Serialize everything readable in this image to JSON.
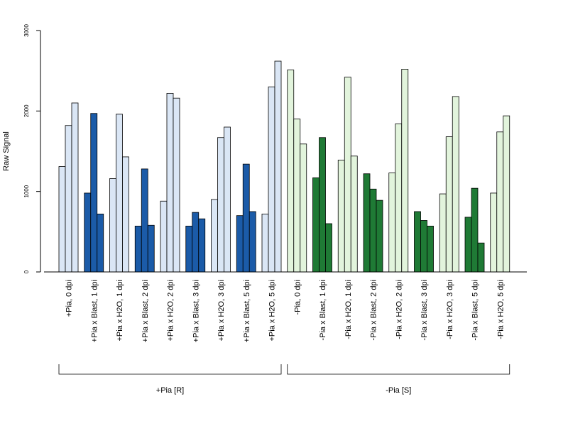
{
  "colors": {
    "pia_r_light": "#dae6f5",
    "pia_r_dark": "#1b5ba8",
    "pia_s_light": "#e2f4dc",
    "pia_s_dark": "#1f7a35",
    "bar_border": "#000000",
    "axis": "#000000"
  },
  "chart_data": {
    "type": "bar",
    "title": "",
    "xlabel": "",
    "ylabel": "Raw Signal",
    "ylim": [
      0,
      3000
    ],
    "yticks": [
      0,
      1000,
      2000,
      3000
    ],
    "bars_per_group": 3,
    "categories": [
      "+Pia, 0 dpi",
      "+Pia x Blast, 1 dpi",
      "+Pia x H2O, 1 dpi",
      "+Pia x Blast, 2 dpi",
      "+Pia x H2O, 2 dpi",
      "+Pia x Blast, 3 dpi",
      "+Pia x H2O, 3 dpi",
      "+Pia x Blast, 5 dpi",
      "+Pia x H2O, 5 dpi",
      "-Pia, 0 dpi",
      "-Pia x Blast, 1 dpi",
      "-Pia x H2O, 1 dpi",
      "-Pia x Blast, 2 dpi",
      "-Pia x H2O, 2 dpi",
      "-Pia x Blast, 3 dpi",
      "-Pia x H2O, 3 dpi",
      "-Pia x Blast, 5 dpi",
      "-Pia x H2O, 5 dpi"
    ],
    "color_keys": [
      "pia_r_light",
      "pia_r_dark",
      "pia_r_light",
      "pia_r_dark",
      "pia_r_light",
      "pia_r_dark",
      "pia_r_light",
      "pia_r_dark",
      "pia_r_light",
      "pia_s_light",
      "pia_s_dark",
      "pia_s_light",
      "pia_s_dark",
      "pia_s_light",
      "pia_s_dark",
      "pia_s_light",
      "pia_s_dark",
      "pia_s_light"
    ],
    "values": [
      [
        1310,
        1820,
        2100
      ],
      [
        980,
        1970,
        720
      ],
      [
        1160,
        1960,
        1430
      ],
      [
        570,
        1280,
        580
      ],
      [
        880,
        2220,
        2160
      ],
      [
        570,
        740,
        660
      ],
      [
        900,
        1670,
        1800
      ],
      [
        700,
        1340,
        750
      ],
      [
        720,
        2300,
        2620
      ],
      [
        2510,
        1900,
        1590
      ],
      [
        1170,
        1670,
        600
      ],
      [
        1390,
        2420,
        1440
      ],
      [
        1220,
        1030,
        890
      ],
      [
        1230,
        1840,
        2520
      ],
      [
        750,
        640,
        570
      ],
      [
        970,
        1680,
        2180
      ],
      [
        680,
        1040,
        360
      ],
      [
        980,
        1740,
        1940
      ]
    ],
    "group_brackets": [
      {
        "label": "+Pia [R]",
        "first": 0,
        "last": 8
      },
      {
        "label": "-Pia [S]",
        "first": 9,
        "last": 17
      }
    ]
  }
}
